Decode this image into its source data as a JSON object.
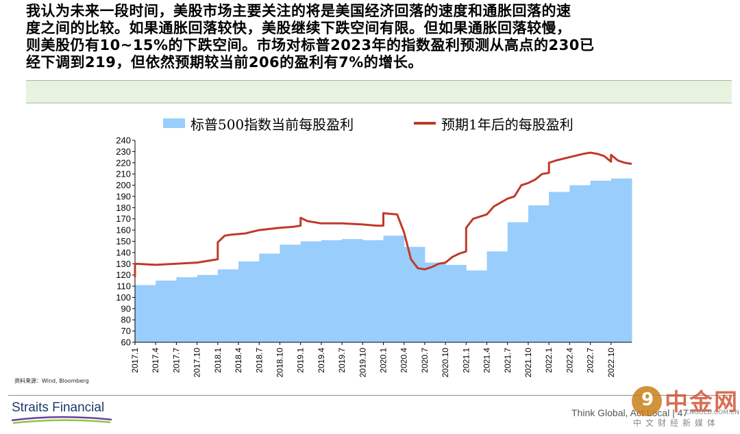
{
  "paragraph": [
    "我认为未来一段时间，美股市场主要关注的将是美国经济回落的速度和通胀回落的速",
    "度之间的比较。如果通胀回落较快，美股继续下跌空间有限。但如果通胀回落较慢，",
    "则美股仍有10~15%的下跌空间。市场对标普2023年的指数盈利预测从高点的230已",
    "经下调到219，但依然预期较当前206的盈利有7%的增长。"
  ],
  "source_note": "资料来源：Wind, Bloomberg",
  "footer": {
    "logo": "Straits Financial",
    "tagline": "Think Global, Act Local",
    "page_number": "47"
  },
  "watermark": {
    "main": "中金网",
    "url": "CNGOLD.COM.CN",
    "sub": "中文财经新媒体"
  },
  "colors": {
    "area": "#99cdfb",
    "line": "#c0392b",
    "band": "#e8f2e1"
  },
  "chart_data": {
    "type": "area",
    "title": "",
    "legend": [
      {
        "name": "标普500指数当前每股盈利",
        "style": "area",
        "color": "#99cdfb"
      },
      {
        "name": "预期1年后的每股盈利",
        "style": "line",
        "color": "#c0392b"
      }
    ],
    "legend_position": "top",
    "ylim": [
      60,
      240
    ],
    "yticks": [
      60,
      70,
      80,
      90,
      100,
      110,
      120,
      130,
      140,
      150,
      160,
      170,
      180,
      190,
      200,
      210,
      220,
      230,
      240
    ],
    "xticks": [
      "2017.1",
      "2017.4",
      "2017.7",
      "2017.10",
      "2018.1",
      "2018.4",
      "2018.7",
      "2018.10",
      "2019.1",
      "2019.4",
      "2019.7",
      "2019.10",
      "2020.1",
      "2020.4",
      "2020.7",
      "2020.10",
      "2021.1",
      "2021.4",
      "2021.7",
      "2021.10",
      "2022.1",
      "2022.4",
      "2022.7",
      "2022.10"
    ],
    "x_start": "2017-01",
    "x_end": "2023-01",
    "series": [
      {
        "name": "标普500指数当前每股盈利",
        "kind": "area",
        "points": [
          [
            "2017-01",
            111
          ],
          [
            "2017-04",
            115
          ],
          [
            "2017-07",
            118
          ],
          [
            "2017-10",
            120
          ],
          [
            "2018-01",
            125
          ],
          [
            "2018-04",
            132
          ],
          [
            "2018-07",
            139
          ],
          [
            "2018-10",
            147
          ],
          [
            "2019-01",
            150
          ],
          [
            "2019-04",
            151
          ],
          [
            "2019-07",
            152
          ],
          [
            "2019-10",
            151
          ],
          [
            "2020-01",
            155
          ],
          [
            "2020-04",
            145
          ],
          [
            "2020-07",
            131
          ],
          [
            "2020-10",
            129
          ],
          [
            "2021-01",
            124
          ],
          [
            "2021-04",
            141
          ],
          [
            "2021-07",
            167
          ],
          [
            "2021-10",
            182
          ],
          [
            "2022-01",
            194
          ],
          [
            "2022-04",
            200
          ],
          [
            "2022-07",
            204
          ],
          [
            "2022-10",
            206
          ]
        ]
      },
      {
        "name": "预期1年后的每股盈利",
        "kind": "line",
        "points": [
          [
            "2017-01",
            118
          ],
          [
            "2017-01",
            130
          ],
          [
            "2017-04",
            129
          ],
          [
            "2017-07",
            130
          ],
          [
            "2017-10",
            131
          ],
          [
            "2017-12",
            133
          ],
          [
            "2018-01",
            134
          ],
          [
            "2018-01",
            149
          ],
          [
            "2018-02",
            155
          ],
          [
            "2018-03",
            156
          ],
          [
            "2018-05",
            157
          ],
          [
            "2018-07",
            160
          ],
          [
            "2018-10",
            162
          ],
          [
            "2018-12",
            163
          ],
          [
            "2019-01",
            164
          ],
          [
            "2019-01",
            171
          ],
          [
            "2019-02",
            168
          ],
          [
            "2019-04",
            166
          ],
          [
            "2019-07",
            166
          ],
          [
            "2019-10",
            165
          ],
          [
            "2019-12",
            164
          ],
          [
            "2020-01",
            164
          ],
          [
            "2020-01",
            175
          ],
          [
            "2020-03",
            174
          ],
          [
            "2020-04",
            158
          ],
          [
            "2020-05",
            134
          ],
          [
            "2020-06",
            126
          ],
          [
            "2020-07",
            125
          ],
          [
            "2020-08",
            127
          ],
          [
            "2020-09",
            130
          ],
          [
            "2020-10",
            131
          ],
          [
            "2020-11",
            136
          ],
          [
            "2020-12",
            139
          ],
          [
            "2021-01",
            141
          ],
          [
            "2021-01",
            162
          ],
          [
            "2021-02",
            170
          ],
          [
            "2021-04",
            174
          ],
          [
            "2021-05",
            181
          ],
          [
            "2021-07",
            188
          ],
          [
            "2021-08",
            190
          ],
          [
            "2021-09",
            200
          ],
          [
            "2021-10",
            202
          ],
          [
            "2021-11",
            205
          ],
          [
            "2021-12",
            210
          ],
          [
            "2022-01",
            211
          ],
          [
            "2022-01",
            220
          ],
          [
            "2022-02",
            222
          ],
          [
            "2022-04",
            225
          ],
          [
            "2022-06",
            228
          ],
          [
            "2022-07",
            229
          ],
          [
            "2022-08",
            228
          ],
          [
            "2022-09",
            226
          ],
          [
            "2022-10",
            221
          ],
          [
            "2022-10",
            227
          ],
          [
            "2022-11",
            222
          ],
          [
            "2022-12",
            220
          ],
          [
            "2023-01",
            219
          ]
        ]
      }
    ]
  }
}
